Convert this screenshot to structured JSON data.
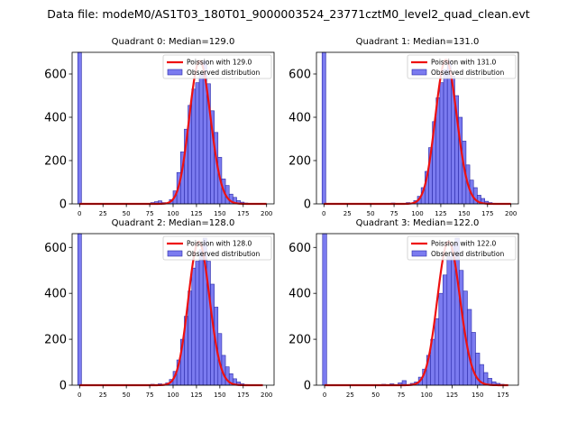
{
  "figure": {
    "suptitle": "Data file: modeM0/AS1T03_180T01_9000003524_23771cztM0_level2_quad_clean.evt"
  },
  "colors": {
    "bar_fill": "#7b7bf0",
    "bar_edge": "#2a2aa8",
    "poisson_line": "#ee1111"
  },
  "chart_data": [
    {
      "type": "bar",
      "title": "Quadrant 0: Median=129.0",
      "median": 129.0,
      "xlim": [
        -8,
        208
      ],
      "ylim": [
        0,
        700
      ],
      "xticks": [
        0,
        25,
        50,
        75,
        100,
        125,
        150,
        175,
        200
      ],
      "yticks": [
        0,
        200,
        400,
        600
      ],
      "bin_width": 4,
      "zero_bin": {
        "x": 0,
        "value": 700
      },
      "bins": [
        [
          76,
          6
        ],
        [
          80,
          10
        ],
        [
          84,
          14
        ],
        [
          88,
          6
        ],
        [
          92,
          4
        ],
        [
          96,
          20
        ],
        [
          100,
          60
        ],
        [
          104,
          145
        ],
        [
          108,
          240
        ],
        [
          112,
          345
        ],
        [
          116,
          455
        ],
        [
          120,
          530
        ],
        [
          124,
          560
        ],
        [
          128,
          600
        ],
        [
          132,
          660
        ],
        [
          136,
          555
        ],
        [
          140,
          430
        ],
        [
          144,
          330
        ],
        [
          148,
          215
        ],
        [
          152,
          115
        ],
        [
          156,
          85
        ],
        [
          160,
          45
        ],
        [
          164,
          30
        ],
        [
          168,
          15
        ],
        [
          172,
          8
        ],
        [
          176,
          4
        ]
      ],
      "legend": [
        "Poission with 129.0",
        "Observed distribution"
      ],
      "poisson": {
        "mean": 129.0,
        "peak": 660,
        "xmax": 200
      }
    },
    {
      "type": "bar",
      "title": "Quadrant 1: Median=131.0",
      "median": 131.0,
      "xlim": [
        -8,
        208
      ],
      "ylim": [
        0,
        700
      ],
      "xticks": [
        0,
        25,
        50,
        75,
        100,
        125,
        150,
        175,
        200
      ],
      "yticks": [
        0,
        200,
        400,
        600
      ],
      "bin_width": 4,
      "zero_bin": {
        "x": 0,
        "value": 700
      },
      "bins": [
        [
          72,
          4
        ],
        [
          88,
          6
        ],
        [
          96,
          15
        ],
        [
          100,
          35
        ],
        [
          104,
          75
        ],
        [
          108,
          150
        ],
        [
          112,
          260
        ],
        [
          116,
          380
        ],
        [
          120,
          490
        ],
        [
          124,
          560
        ],
        [
          128,
          620
        ],
        [
          132,
          660
        ],
        [
          136,
          590
        ],
        [
          140,
          500
        ],
        [
          144,
          400
        ],
        [
          148,
          290
        ],
        [
          152,
          180
        ],
        [
          156,
          110
        ],
        [
          160,
          75
        ],
        [
          164,
          40
        ],
        [
          168,
          25
        ],
        [
          172,
          12
        ],
        [
          176,
          6
        ],
        [
          180,
          3
        ]
      ],
      "legend": [
        "Poission with 131.0",
        "Observed distribution"
      ],
      "poisson": {
        "mean": 131.0,
        "peak": 665,
        "xmax": 200
      }
    },
    {
      "type": "bar",
      "title": "Quadrant 2: Median=128.0",
      "median": 128.0,
      "xlim": [
        -8,
        208
      ],
      "ylim": [
        0,
        660
      ],
      "xticks": [
        0,
        25,
        50,
        75,
        100,
        125,
        150,
        175,
        200
      ],
      "yticks": [
        0,
        200,
        400,
        600
      ],
      "bin_width": 4,
      "zero_bin": {
        "x": 0,
        "value": 660
      },
      "bins": [
        [
          76,
          4
        ],
        [
          84,
          6
        ],
        [
          92,
          10
        ],
        [
          96,
          25
        ],
        [
          100,
          60
        ],
        [
          104,
          110
        ],
        [
          108,
          200
        ],
        [
          112,
          300
        ],
        [
          116,
          410
        ],
        [
          120,
          510
        ],
        [
          124,
          540
        ],
        [
          128,
          590
        ],
        [
          132,
          640
        ],
        [
          136,
          540
        ],
        [
          140,
          440
        ],
        [
          144,
          340
        ],
        [
          148,
          225
        ],
        [
          152,
          130
        ],
        [
          156,
          80
        ],
        [
          160,
          50
        ],
        [
          164,
          28
        ],
        [
          168,
          14
        ],
        [
          172,
          6
        ],
        [
          176,
          3
        ]
      ],
      "legend": [
        "Poission with 128.0",
        "Observed distribution"
      ],
      "poisson": {
        "mean": 128.0,
        "peak": 625,
        "xmax": 196
      }
    },
    {
      "type": "bar",
      "title": "Quadrant 3: Median=122.0",
      "median": 122.0,
      "xlim": [
        -8,
        190
      ],
      "ylim": [
        0,
        660
      ],
      "xticks": [
        0,
        25,
        50,
        75,
        100,
        125,
        150,
        175
      ],
      "yticks": [
        0,
        200,
        400,
        600
      ],
      "bin_width": 4,
      "zero_bin": {
        "x": 0,
        "value": 660
      },
      "bins": [
        [
          56,
          4
        ],
        [
          64,
          6
        ],
        [
          72,
          10
        ],
        [
          76,
          20
        ],
        [
          84,
          8
        ],
        [
          88,
          14
        ],
        [
          92,
          35
        ],
        [
          96,
          70
        ],
        [
          100,
          130
        ],
        [
          104,
          200
        ],
        [
          108,
          290
        ],
        [
          112,
          400
        ],
        [
          116,
          480
        ],
        [
          120,
          560
        ],
        [
          124,
          610
        ],
        [
          128,
          640
        ],
        [
          132,
          500
        ],
        [
          136,
          410
        ],
        [
          140,
          330
        ],
        [
          144,
          230
        ],
        [
          148,
          140
        ],
        [
          152,
          90
        ],
        [
          156,
          55
        ],
        [
          160,
          30
        ],
        [
          164,
          15
        ],
        [
          168,
          8
        ],
        [
          172,
          4
        ]
      ],
      "legend": [
        "Poission with 122.0",
        "Observed distribution"
      ],
      "poisson": {
        "mean": 122.0,
        "peak": 625,
        "xmax": 180
      }
    }
  ]
}
